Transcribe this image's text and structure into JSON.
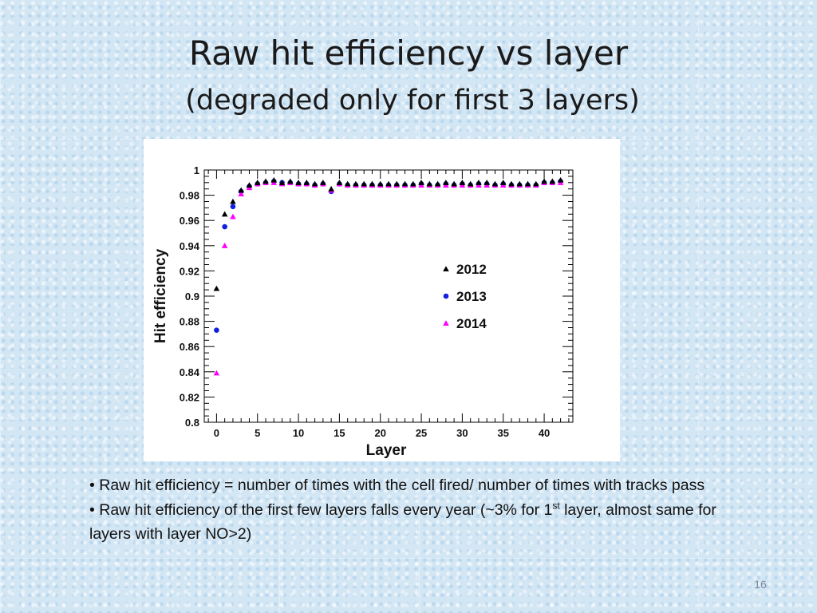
{
  "slide": {
    "title": "Raw hit efficiency vs layer",
    "subtitle": "(degraded only for first 3 layers)",
    "page_number": "16",
    "bullets": [
      {
        "marker": "•",
        "text": "Raw hit efficiency = number of times  with the cell fired/ number of times with tracks pass"
      },
      {
        "marker": "•",
        "text_before_sup": "Raw hit efficiency  of the first few layers falls every year  (~3% for 1",
        "sup": "st",
        "text_after_sup": " layer, almost same for layers with layer NO>2)"
      }
    ]
  },
  "chart_data": {
    "type": "scatter",
    "title": "",
    "xlabel": "Layer",
    "ylabel": "Hit efficiency",
    "xlim": [
      -1.5,
      43.5
    ],
    "ylim": [
      0.8,
      1.0
    ],
    "xticks": [
      0,
      5,
      10,
      15,
      20,
      25,
      30,
      35,
      40
    ],
    "yticks": [
      0.8,
      0.82,
      0.84,
      0.86,
      0.88,
      0.9,
      0.92,
      0.94,
      0.96,
      0.98,
      1
    ],
    "ytick_labels": [
      "0.8",
      "0.82",
      "0.84",
      "0.86",
      "0.88",
      "0.9",
      "0.92",
      "0.94",
      "0.96",
      "0.98",
      "1"
    ],
    "legend_position": "center-right",
    "x": [
      0,
      1,
      2,
      3,
      4,
      5,
      6,
      7,
      8,
      9,
      10,
      11,
      12,
      13,
      14,
      15,
      16,
      17,
      18,
      19,
      20,
      21,
      22,
      23,
      24,
      25,
      26,
      27,
      28,
      29,
      30,
      31,
      32,
      33,
      34,
      35,
      36,
      37,
      38,
      39,
      40,
      41,
      42
    ],
    "series": [
      {
        "name": "2012",
        "marker": "triangle",
        "color": "#000000",
        "values": [
          0.906,
          0.965,
          0.975,
          0.984,
          0.988,
          0.99,
          0.991,
          0.992,
          0.99,
          0.991,
          0.99,
          0.99,
          0.989,
          0.99,
          0.985,
          0.99,
          0.989,
          0.989,
          0.989,
          0.989,
          0.989,
          0.989,
          0.989,
          0.989,
          0.989,
          0.99,
          0.989,
          0.989,
          0.99,
          0.989,
          0.99,
          0.989,
          0.99,
          0.99,
          0.989,
          0.99,
          0.989,
          0.989,
          0.989,
          0.989,
          0.991,
          0.991,
          0.992
        ]
      },
      {
        "name": "2013",
        "marker": "circle",
        "color": "#1020e0",
        "values": [
          0.873,
          0.955,
          0.971,
          0.983,
          0.987,
          0.989,
          0.99,
          0.991,
          0.99,
          0.99,
          0.989,
          0.989,
          0.988,
          0.989,
          0.983,
          0.989,
          0.988,
          0.988,
          0.988,
          0.988,
          0.988,
          0.988,
          0.988,
          0.988,
          0.988,
          0.989,
          0.988,
          0.988,
          0.989,
          0.988,
          0.989,
          0.988,
          0.989,
          0.989,
          0.988,
          0.989,
          0.988,
          0.988,
          0.988,
          0.988,
          0.99,
          0.99,
          0.991
        ]
      },
      {
        "name": "2014",
        "marker": "triangle",
        "color": "#ff00ff",
        "values": [
          0.839,
          0.94,
          0.963,
          0.981,
          0.986,
          0.989,
          0.99,
          0.99,
          0.989,
          0.99,
          0.989,
          0.989,
          0.988,
          0.989,
          0.984,
          0.989,
          0.988,
          0.988,
          0.988,
          0.988,
          0.988,
          0.988,
          0.988,
          0.988,
          0.988,
          0.988,
          0.988,
          0.988,
          0.988,
          0.988,
          0.988,
          0.988,
          0.988,
          0.988,
          0.988,
          0.988,
          0.988,
          0.988,
          0.988,
          0.988,
          0.99,
          0.99,
          0.99
        ]
      }
    ]
  }
}
